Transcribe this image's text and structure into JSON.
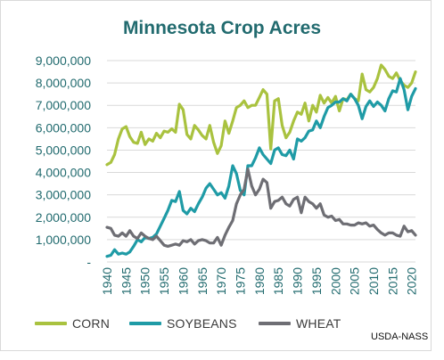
{
  "chart_data": {
    "type": "line",
    "title": "Minnesota Crop Acres",
    "source": "USDA-NASS",
    "ylim": [
      0,
      9000000
    ],
    "xlim": [
      1940,
      2021
    ],
    "y_ticks": [
      "-",
      "1,000,000",
      "2,000,000",
      "3,000,000",
      "4,000,000",
      "5,000,000",
      "6,000,000",
      "7,000,000",
      "8,000,000",
      "9,000,000"
    ],
    "x_ticks": [
      "1940",
      "1945",
      "1950",
      "1955",
      "1960",
      "1965",
      "1970",
      "1975",
      "1980",
      "1985",
      "1990",
      "1995",
      "2000",
      "2005",
      "2010",
      "2015",
      "2020"
    ],
    "grid": "horizontal",
    "legend": "bottom",
    "series": [
      {
        "name": "CORN",
        "color": "#a9c23f",
        "points": [
          [
            1940,
            4350000
          ],
          [
            1941,
            4450000
          ],
          [
            1942,
            4800000
          ],
          [
            1943,
            5500000
          ],
          [
            1944,
            5950000
          ],
          [
            1945,
            6050000
          ],
          [
            1946,
            5600000
          ],
          [
            1947,
            5350000
          ],
          [
            1948,
            5300000
          ],
          [
            1949,
            5800000
          ],
          [
            1950,
            5250000
          ],
          [
            1951,
            5500000
          ],
          [
            1952,
            5400000
          ],
          [
            1953,
            5750000
          ],
          [
            1954,
            5550000
          ],
          [
            1955,
            5850000
          ],
          [
            1956,
            5800000
          ],
          [
            1957,
            5950000
          ],
          [
            1958,
            5800000
          ],
          [
            1959,
            7050000
          ],
          [
            1960,
            6800000
          ],
          [
            1961,
            5700000
          ],
          [
            1962,
            5500000
          ],
          [
            1963,
            6100000
          ],
          [
            1964,
            5900000
          ],
          [
            1965,
            5650000
          ],
          [
            1966,
            5500000
          ],
          [
            1967,
            6100000
          ],
          [
            1968,
            5350000
          ],
          [
            1969,
            4850000
          ],
          [
            1970,
            5200000
          ],
          [
            1971,
            6300000
          ],
          [
            1972,
            5750000
          ],
          [
            1973,
            6300000
          ],
          [
            1974,
            6900000
          ],
          [
            1975,
            7000000
          ],
          [
            1976,
            7200000
          ],
          [
            1977,
            6900000
          ],
          [
            1978,
            7000000
          ],
          [
            1979,
            7000000
          ],
          [
            1980,
            7350000
          ],
          [
            1981,
            7700000
          ],
          [
            1982,
            7500000
          ],
          [
            1983,
            5050000
          ],
          [
            1984,
            7200000
          ],
          [
            1985,
            7300000
          ],
          [
            1986,
            6100000
          ],
          [
            1987,
            5550000
          ],
          [
            1988,
            5800000
          ],
          [
            1989,
            6300000
          ],
          [
            1990,
            6700000
          ],
          [
            1991,
            6600000
          ],
          [
            1992,
            7100000
          ],
          [
            1993,
            6300000
          ],
          [
            1994,
            7000000
          ],
          [
            1995,
            6700000
          ],
          [
            1996,
            7450000
          ],
          [
            1997,
            7100000
          ],
          [
            1998,
            7350000
          ],
          [
            1999,
            7100000
          ],
          [
            2000,
            7400000
          ],
          [
            2001,
            6750000
          ],
          [
            2002,
            7300000
          ],
          [
            2003,
            7250000
          ],
          [
            2004,
            7500000
          ],
          [
            2005,
            7300000
          ],
          [
            2006,
            7200000
          ],
          [
            2007,
            8400000
          ],
          [
            2008,
            7700000
          ],
          [
            2009,
            7600000
          ],
          [
            2010,
            7800000
          ],
          [
            2011,
            8200000
          ],
          [
            2012,
            8800000
          ],
          [
            2013,
            8600000
          ],
          [
            2014,
            8300000
          ],
          [
            2015,
            8200000
          ],
          [
            2016,
            8450000
          ],
          [
            2017,
            8100000
          ],
          [
            2018,
            7900000
          ],
          [
            2019,
            7800000
          ],
          [
            2020,
            8000000
          ],
          [
            2021,
            8500000
          ]
        ]
      },
      {
        "name": "SOYBEANS",
        "color": "#1f9ba6",
        "points": [
          [
            1940,
            250000
          ],
          [
            1941,
            300000
          ],
          [
            1942,
            550000
          ],
          [
            1943,
            350000
          ],
          [
            1944,
            400000
          ],
          [
            1945,
            350000
          ],
          [
            1946,
            450000
          ],
          [
            1947,
            700000
          ],
          [
            1948,
            1000000
          ],
          [
            1949,
            900000
          ],
          [
            1950,
            1100000
          ],
          [
            1951,
            1050000
          ],
          [
            1952,
            1100000
          ],
          [
            1953,
            1250000
          ],
          [
            1954,
            1600000
          ],
          [
            1955,
            1950000
          ],
          [
            1956,
            2300000
          ],
          [
            1957,
            2750000
          ],
          [
            1958,
            2700000
          ],
          [
            1959,
            3150000
          ],
          [
            1960,
            2300000
          ],
          [
            1961,
            2150000
          ],
          [
            1962,
            2400000
          ],
          [
            1963,
            2250000
          ],
          [
            1964,
            2600000
          ],
          [
            1965,
            2900000
          ],
          [
            1966,
            3300000
          ],
          [
            1967,
            3500000
          ],
          [
            1968,
            3250000
          ],
          [
            1969,
            3000000
          ],
          [
            1970,
            3100000
          ],
          [
            1971,
            2850000
          ],
          [
            1972,
            3400000
          ],
          [
            1973,
            4300000
          ],
          [
            1974,
            3950000
          ],
          [
            1975,
            3200000
          ],
          [
            1976,
            3000000
          ],
          [
            1977,
            4300000
          ],
          [
            1978,
            4300000
          ],
          [
            1979,
            4650000
          ],
          [
            1980,
            5100000
          ],
          [
            1981,
            4800000
          ],
          [
            1982,
            4600000
          ],
          [
            1983,
            4400000
          ],
          [
            1984,
            5000000
          ],
          [
            1985,
            5100000
          ],
          [
            1986,
            4800000
          ],
          [
            1987,
            4750000
          ],
          [
            1988,
            5000000
          ],
          [
            1989,
            4600000
          ],
          [
            1990,
            5500000
          ],
          [
            1991,
            5400000
          ],
          [
            1992,
            5550000
          ],
          [
            1993,
            5850000
          ],
          [
            1994,
            5900000
          ],
          [
            1995,
            6300000
          ],
          [
            1996,
            6000000
          ],
          [
            1997,
            6500000
          ],
          [
            1998,
            6900000
          ],
          [
            1999,
            7000000
          ],
          [
            2000,
            7150000
          ],
          [
            2001,
            7150000
          ],
          [
            2002,
            7300000
          ],
          [
            2003,
            7200000
          ],
          [
            2004,
            7500000
          ],
          [
            2005,
            7300000
          ],
          [
            2006,
            7000000
          ],
          [
            2007,
            6400000
          ],
          [
            2008,
            6950000
          ],
          [
            2009,
            7200000
          ],
          [
            2010,
            6950000
          ],
          [
            2011,
            7150000
          ],
          [
            2012,
            7000000
          ],
          [
            2013,
            6750000
          ],
          [
            2014,
            7300000
          ],
          [
            2015,
            7650000
          ],
          [
            2016,
            7600000
          ],
          [
            2017,
            8200000
          ],
          [
            2018,
            7700000
          ],
          [
            2019,
            6800000
          ],
          [
            2020,
            7400000
          ],
          [
            2021,
            7750000
          ]
        ]
      },
      {
        "name": "WHEAT",
        "color": "#6e6e74",
        "points": [
          [
            1940,
            1550000
          ],
          [
            1941,
            1500000
          ],
          [
            1942,
            1200000
          ],
          [
            1943,
            1150000
          ],
          [
            1944,
            1300000
          ],
          [
            1945,
            1150000
          ],
          [
            1946,
            1400000
          ],
          [
            1947,
            1150000
          ],
          [
            1948,
            1050000
          ],
          [
            1949,
            1300000
          ],
          [
            1950,
            1150000
          ],
          [
            1951,
            1050000
          ],
          [
            1952,
            1000000
          ],
          [
            1953,
            1150000
          ],
          [
            1954,
            950000
          ],
          [
            1955,
            750000
          ],
          [
            1956,
            700000
          ],
          [
            1957,
            750000
          ],
          [
            1958,
            800000
          ],
          [
            1959,
            750000
          ],
          [
            1960,
            950000
          ],
          [
            1961,
            900000
          ],
          [
            1962,
            1000000
          ],
          [
            1963,
            800000
          ],
          [
            1964,
            950000
          ],
          [
            1965,
            1000000
          ],
          [
            1966,
            950000
          ],
          [
            1967,
            850000
          ],
          [
            1968,
            850000
          ],
          [
            1969,
            1100000
          ],
          [
            1970,
            750000
          ],
          [
            1971,
            1200000
          ],
          [
            1972,
            1550000
          ],
          [
            1973,
            1850000
          ],
          [
            1974,
            2600000
          ],
          [
            1975,
            3000000
          ],
          [
            1976,
            3250000
          ],
          [
            1977,
            4150000
          ],
          [
            1978,
            3400000
          ],
          [
            1979,
            3000000
          ],
          [
            1980,
            3250000
          ],
          [
            1981,
            3700000
          ],
          [
            1982,
            3550000
          ],
          [
            1983,
            2400000
          ],
          [
            1984,
            2700000
          ],
          [
            1985,
            2750000
          ],
          [
            1986,
            2900000
          ],
          [
            1987,
            2600000
          ],
          [
            1988,
            2500000
          ],
          [
            1989,
            2800000
          ],
          [
            1990,
            2900000
          ],
          [
            1991,
            2200000
          ],
          [
            1992,
            2900000
          ],
          [
            1993,
            2700000
          ],
          [
            1994,
            2600000
          ],
          [
            1995,
            2400000
          ],
          [
            1996,
            2600000
          ],
          [
            1997,
            2100000
          ],
          [
            1998,
            2000000
          ],
          [
            1999,
            2050000
          ],
          [
            2000,
            1850000
          ],
          [
            2001,
            1900000
          ],
          [
            2002,
            1700000
          ],
          [
            2003,
            1700000
          ],
          [
            2004,
            1650000
          ],
          [
            2005,
            1650000
          ],
          [
            2006,
            1750000
          ],
          [
            2007,
            1700000
          ],
          [
            2008,
            1750000
          ],
          [
            2009,
            1600000
          ],
          [
            2010,
            1650000
          ],
          [
            2011,
            1450000
          ],
          [
            2012,
            1300000
          ],
          [
            2013,
            1200000
          ],
          [
            2014,
            1300000
          ],
          [
            2015,
            1300000
          ],
          [
            2016,
            1200000
          ],
          [
            2017,
            1150000
          ],
          [
            2018,
            1600000
          ],
          [
            2019,
            1350000
          ],
          [
            2020,
            1400000
          ],
          [
            2021,
            1200000
          ]
        ]
      }
    ]
  }
}
